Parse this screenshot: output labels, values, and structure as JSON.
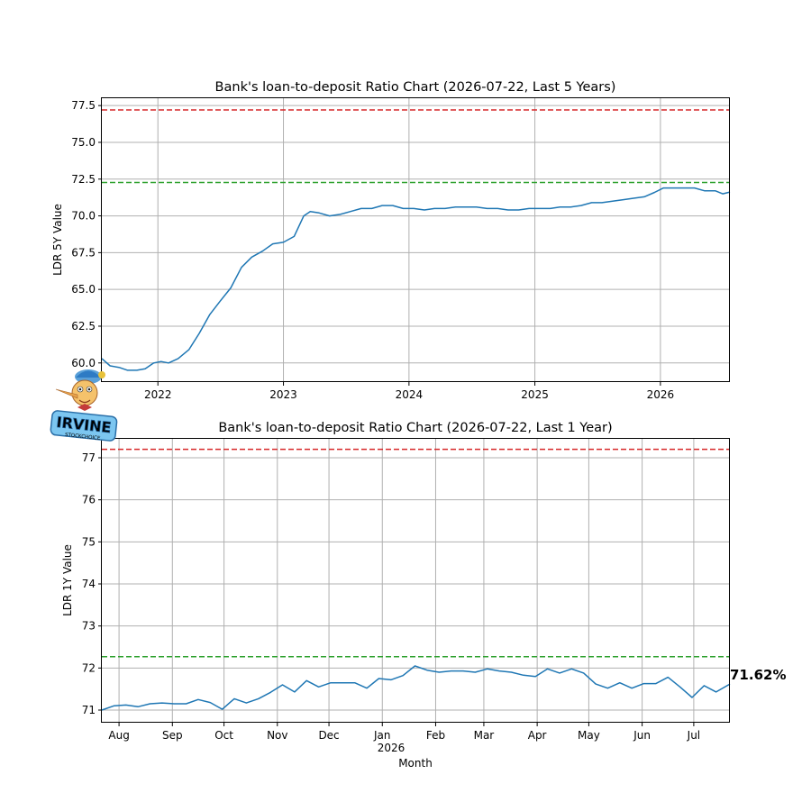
{
  "colors": {
    "series": "#1f77b4",
    "upper_threshold": "#d62728",
    "lower_threshold": "#2ca02c",
    "grid": "#b0b0b0"
  },
  "logo": {
    "icon": "pinocchio-mascot-icon",
    "text": "IRVINE STOCKCHOICE"
  },
  "chart_data": [
    {
      "type": "line",
      "title": "Bank's loan-to-deposit Ratio Chart (2026-07-22, Last 5 Years)",
      "xlabel": "",
      "ylabel": "LDR 5Y Value",
      "xlim": [
        "2021-07-22",
        "2026-07-22"
      ],
      "ylim": [
        58.7,
        78.0
      ],
      "grid": true,
      "x_ticks": [
        {
          "date": "2022-01-01",
          "label": "2022"
        },
        {
          "date": "2023-01-01",
          "label": "2023"
        },
        {
          "date": "2024-01-01",
          "label": "2024"
        },
        {
          "date": "2025-01-01",
          "label": "2025"
        },
        {
          "date": "2026-01-01",
          "label": "2026"
        }
      ],
      "y_ticks": [
        "60.0",
        "62.5",
        "65.0",
        "67.5",
        "70.0",
        "72.5",
        "75.0",
        "77.5"
      ],
      "hlines": [
        {
          "value": 77.2,
          "style": "dashed",
          "color": "red"
        },
        {
          "value": 72.27,
          "style": "dashed",
          "color": "green"
        }
      ],
      "series": [
        {
          "x": [
            "2021-07-22",
            "2021-08-15",
            "2021-09-10",
            "2021-10-05",
            "2021-11-01",
            "2021-11-25",
            "2021-12-20",
            "2022-01-10",
            "2022-02-01",
            "2022-03-01",
            "2022-04-01",
            "2022-05-01",
            "2022-06-01",
            "2022-07-01",
            "2022-08-01",
            "2022-09-01",
            "2022-10-01",
            "2022-11-01",
            "2022-12-01",
            "2023-01-01",
            "2023-02-01",
            "2023-03-01",
            "2023-03-20",
            "2023-04-15",
            "2023-05-15",
            "2023-06-15",
            "2023-07-15",
            "2023-08-15",
            "2023-09-15",
            "2023-10-15",
            "2023-11-15",
            "2023-12-15",
            "2024-01-15",
            "2024-02-15",
            "2024-03-15",
            "2024-04-15",
            "2024-05-15",
            "2024-06-15",
            "2024-07-15",
            "2024-08-15",
            "2024-09-15",
            "2024-10-15",
            "2024-11-15",
            "2024-12-15",
            "2025-01-15",
            "2025-02-15",
            "2025-03-15",
            "2025-04-15",
            "2025-05-15",
            "2025-06-15",
            "2025-07-15",
            "2025-08-15",
            "2025-09-15",
            "2025-10-15",
            "2025-11-15",
            "2025-12-15",
            "2026-01-10",
            "2026-02-10",
            "2026-03-10",
            "2026-04-10",
            "2026-05-10",
            "2026-06-10",
            "2026-07-01",
            "2026-07-22"
          ],
          "y": [
            60.3,
            59.8,
            59.7,
            59.5,
            59.5,
            59.6,
            60.0,
            60.1,
            60.0,
            60.3,
            60.9,
            62.0,
            63.3,
            64.2,
            65.1,
            66.5,
            67.2,
            67.6,
            68.1,
            68.2,
            68.6,
            70.0,
            70.3,
            70.2,
            70.0,
            70.1,
            70.3,
            70.5,
            70.5,
            70.7,
            70.7,
            70.5,
            70.5,
            70.4,
            70.5,
            70.5,
            70.6,
            70.6,
            70.6,
            70.5,
            70.5,
            70.4,
            70.4,
            70.5,
            70.5,
            70.5,
            70.6,
            70.6,
            70.7,
            70.9,
            70.9,
            71.0,
            71.1,
            71.2,
            71.3,
            71.6,
            71.9,
            71.9,
            71.9,
            71.9,
            71.7,
            71.7,
            71.5,
            71.62
          ]
        }
      ]
    },
    {
      "type": "line",
      "title": "Bank's loan-to-deposit Ratio Chart (2026-07-22, Last 1 Year)",
      "xlabel": "Month",
      "ylabel": "LDR 1Y Value",
      "xlim": [
        "2025-07-22",
        "2026-07-22"
      ],
      "ylim": [
        70.7,
        77.45
      ],
      "grid": true,
      "x_ticks": [
        {
          "date": "2025-08-01",
          "label": "Aug"
        },
        {
          "date": "2025-09-01",
          "label": "Sep"
        },
        {
          "date": "2025-10-01",
          "label": "Oct"
        },
        {
          "date": "2025-11-01",
          "label": "Nov"
        },
        {
          "date": "2025-12-01",
          "label": "Dec"
        },
        {
          "date": "2026-01-01",
          "label": "Jan"
        },
        {
          "date": "2026-02-01",
          "label": "Feb"
        },
        {
          "date": "2026-03-01",
          "label": "Mar"
        },
        {
          "date": "2026-04-01",
          "label": "Apr"
        },
        {
          "date": "2026-05-01",
          "label": "May"
        },
        {
          "date": "2026-06-01",
          "label": "Jun"
        },
        {
          "date": "2026-07-01",
          "label": "Jul"
        }
      ],
      "x_year_label": "2026",
      "y_ticks": [
        "71",
        "72",
        "73",
        "74",
        "75",
        "76",
        "77"
      ],
      "hlines": [
        {
          "value": 77.2,
          "style": "dashed",
          "color": "red"
        },
        {
          "value": 72.27,
          "style": "dashed",
          "color": "green"
        }
      ],
      "last_value_label": "71.62%",
      "series": [
        {
          "x": [
            "2025-07-22",
            "2025-07-29",
            "2025-08-05",
            "2025-08-12",
            "2025-08-19",
            "2025-08-26",
            "2025-09-02",
            "2025-09-09",
            "2025-09-16",
            "2025-09-23",
            "2025-09-30",
            "2025-10-07",
            "2025-10-14",
            "2025-10-21",
            "2025-10-28",
            "2025-11-04",
            "2025-11-11",
            "2025-11-18",
            "2025-11-25",
            "2025-12-02",
            "2025-12-09",
            "2025-12-16",
            "2025-12-23",
            "2025-12-30",
            "2026-01-06",
            "2026-01-13",
            "2026-01-20",
            "2026-01-27",
            "2026-02-03",
            "2026-02-10",
            "2026-02-17",
            "2026-02-24",
            "2026-03-03",
            "2026-03-10",
            "2026-03-17",
            "2026-03-24",
            "2026-03-31",
            "2026-04-07",
            "2026-04-14",
            "2026-04-21",
            "2026-04-28",
            "2026-05-05",
            "2026-05-12",
            "2026-05-19",
            "2026-05-26",
            "2026-06-02",
            "2026-06-09",
            "2026-06-16",
            "2026-06-23",
            "2026-06-30",
            "2026-07-07",
            "2026-07-14",
            "2026-07-22"
          ],
          "y": [
            71.0,
            71.1,
            71.12,
            71.08,
            71.15,
            71.17,
            71.15,
            71.15,
            71.25,
            71.18,
            71.02,
            71.27,
            71.17,
            71.27,
            71.42,
            71.6,
            71.43,
            71.7,
            71.55,
            71.65,
            71.65,
            71.65,
            71.52,
            71.75,
            71.72,
            71.82,
            72.05,
            71.95,
            71.9,
            71.93,
            71.93,
            71.9,
            71.98,
            71.93,
            71.9,
            71.83,
            71.8,
            71.98,
            71.88,
            71.98,
            71.88,
            71.62,
            71.52,
            71.65,
            71.52,
            71.63,
            71.63,
            71.78,
            71.55,
            71.3,
            71.58,
            71.43,
            71.62
          ]
        }
      ]
    }
  ]
}
